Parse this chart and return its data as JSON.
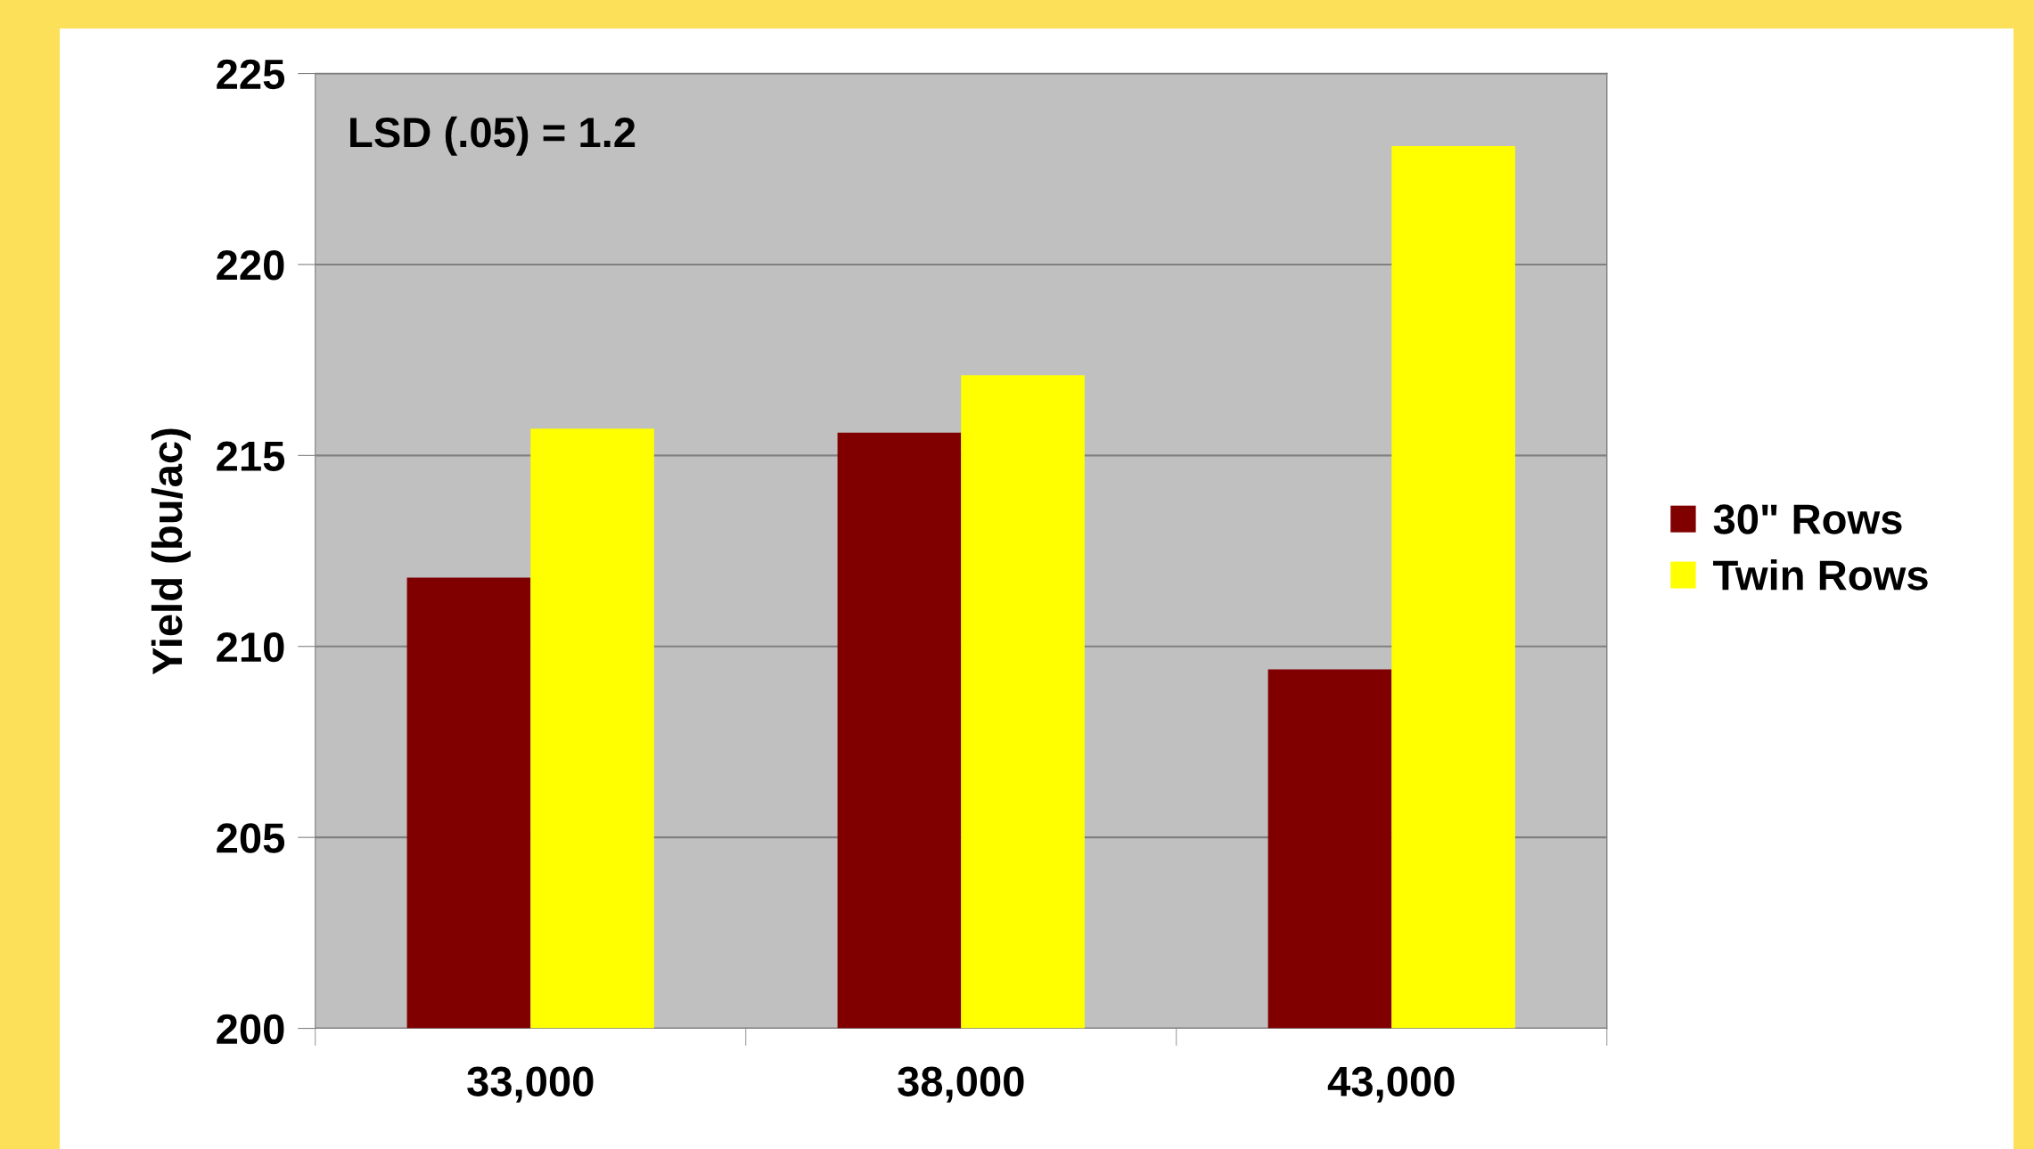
{
  "chart_data": {
    "type": "bar",
    "ylabel": "Yield (bu/ac)",
    "categories": [
      "33,000",
      "38,000",
      "43,000"
    ],
    "series": [
      {
        "name": "30\" Rows",
        "color": "#800000",
        "values": [
          211.8,
          215.6,
          209.4
        ]
      },
      {
        "name": "Twin Rows",
        "color": "#ffff00",
        "values": [
          215.7,
          217.1,
          223.1
        ]
      }
    ],
    "ylim": [
      200,
      225
    ],
    "yticks": [
      200,
      205,
      210,
      215,
      220,
      225
    ],
    "grid": "y",
    "legend": "right",
    "annotations": [
      "LSD (.05) = 1.2"
    ]
  }
}
